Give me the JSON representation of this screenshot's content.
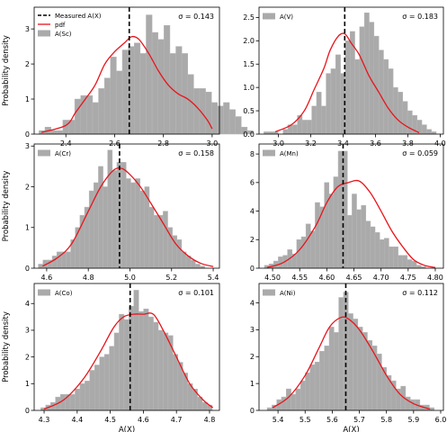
{
  "figure": {
    "ylabel": "Probability density",
    "xlabel": "A(X)",
    "legend_labels": {
      "measured": "Measured A(X)",
      "pdf": "pdf"
    },
    "colors": {
      "bar": "#aaaaaa",
      "bar_edge": "#b6b6b6",
      "pdf": "#e8141b",
      "measured": "#000000"
    }
  },
  "chart_data": [
    {
      "type": "bar",
      "title": "",
      "hist_label": "A(Sc)",
      "sigma_text": "σ = 0.143",
      "measured": 2.66,
      "bin_start": 2.29,
      "bin_width": 0.0244,
      "values": [
        0.1,
        0.2,
        0.1,
        0.1,
        0.4,
        0.4,
        1.0,
        1.1,
        1.1,
        0.9,
        1.3,
        1.6,
        2.2,
        1.8,
        2.4,
        2.5,
        2.6,
        2.3,
        3.4,
        2.9,
        2.7,
        3.1,
        2.3,
        2.5,
        2.3,
        1.7,
        1.3,
        1.3,
        1.2,
        0.9,
        0.8,
        0.9,
        0.7,
        0.5,
        0.2,
        0.1
      ],
      "pdf": [
        [
          2.3,
          0.05
        ],
        [
          2.4,
          0.25
        ],
        [
          2.44,
          0.62
        ],
        [
          2.48,
          1.0
        ],
        [
          2.52,
          1.4
        ],
        [
          2.56,
          2.0
        ],
        [
          2.6,
          2.35
        ],
        [
          2.64,
          2.6
        ],
        [
          2.67,
          2.78
        ],
        [
          2.7,
          2.7
        ],
        [
          2.74,
          2.3
        ],
        [
          2.78,
          1.8
        ],
        [
          2.82,
          1.4
        ],
        [
          2.86,
          1.15
        ],
        [
          2.9,
          1.0
        ],
        [
          2.94,
          0.75
        ],
        [
          2.98,
          0.4
        ],
        [
          3.0,
          0.15
        ]
      ],
      "xlim": [
        2.27,
        3.03
      ],
      "ylim": [
        0,
        3.62
      ],
      "xticks": [
        2.4,
        2.6,
        2.8,
        3.0
      ],
      "xtick_labels": [
        "2.4",
        "2.6",
        "2.8",
        "3.0"
      ],
      "yticks": [
        0,
        1,
        2,
        3
      ],
      "ytick_labels": [
        "0",
        "1",
        "2",
        "3"
      ],
      "legend_placement": "top-left"
    },
    {
      "type": "bar",
      "title": "",
      "hist_label": "A(V)",
      "sigma_text": "σ = 0.183",
      "measured": 3.41,
      "bin_start": 2.91,
      "bin_width": 0.0296,
      "values": [
        0.05,
        0.05,
        0.05,
        0.0,
        0.1,
        0.2,
        0.2,
        0.4,
        0.3,
        0.3,
        0.6,
        0.9,
        0.6,
        1.3,
        1.4,
        1.7,
        1.3,
        2.0,
        2.2,
        1.6,
        2.3,
        2.6,
        2.4,
        2.1,
        1.8,
        1.6,
        1.4,
        1.0,
        0.9,
        0.7,
        0.5,
        0.4,
        0.3,
        0.2,
        0.1,
        0.05
      ],
      "pdf": [
        [
          2.98,
          0.05
        ],
        [
          3.08,
          0.2
        ],
        [
          3.16,
          0.5
        ],
        [
          3.22,
          0.95
        ],
        [
          3.28,
          1.4
        ],
        [
          3.32,
          1.8
        ],
        [
          3.37,
          2.1
        ],
        [
          3.41,
          2.15
        ],
        [
          3.45,
          1.95
        ],
        [
          3.5,
          1.7
        ],
        [
          3.56,
          1.25
        ],
        [
          3.62,
          0.9
        ],
        [
          3.68,
          0.55
        ],
        [
          3.74,
          0.3
        ],
        [
          3.8,
          0.15
        ],
        [
          3.87,
          0.03
        ]
      ],
      "xlim": [
        2.88,
        4.02
      ],
      "ylim": [
        0,
        2.72
      ],
      "xticks": [
        3.0,
        3.2,
        3.4,
        3.6,
        3.8,
        4.0
      ],
      "xtick_labels": [
        "3.0",
        "3.2",
        "3.4",
        "3.6",
        "3.8",
        "4.0"
      ],
      "yticks": [
        0.0,
        0.5,
        1.0,
        1.5,
        2.0,
        2.5
      ],
      "ytick_labels": [
        "0.0",
        "0.5",
        "1.0",
        "1.5",
        "2.0",
        "2.5"
      ],
      "legend_placement": "top-left"
    },
    {
      "type": "bar",
      "title": "",
      "hist_label": "A(Cr)",
      "sigma_text": "σ = 0.158",
      "measured": 4.95,
      "bin_start": 4.56,
      "bin_width": 0.0222,
      "values": [
        0.1,
        0.2,
        0.2,
        0.3,
        0.4,
        0.4,
        0.4,
        0.7,
        1.0,
        1.3,
        1.5,
        1.9,
        2.1,
        2.5,
        2.0,
        2.9,
        2.4,
        2.6,
        2.6,
        2.2,
        2.1,
        2.2,
        1.9,
        2.0,
        1.5,
        1.3,
        1.3,
        1.4,
        1.0,
        0.8,
        0.7,
        0.4,
        0.3,
        0.2,
        0.1,
        0.05
      ],
      "pdf": [
        [
          4.58,
          0.05
        ],
        [
          4.65,
          0.25
        ],
        [
          4.72,
          0.6
        ],
        [
          4.8,
          1.4
        ],
        [
          4.86,
          2.0
        ],
        [
          4.92,
          2.4
        ],
        [
          4.96,
          2.45
        ],
        [
          5.0,
          2.3
        ],
        [
          5.05,
          2.0
        ],
        [
          5.1,
          1.6
        ],
        [
          5.16,
          1.1
        ],
        [
          5.22,
          0.6
        ],
        [
          5.28,
          0.3
        ],
        [
          5.34,
          0.12
        ],
        [
          5.4,
          0.04
        ]
      ],
      "xlim": [
        4.54,
        5.43
      ],
      "ylim": [
        0,
        3.05
      ],
      "xticks": [
        4.6,
        4.8,
        5.0,
        5.2,
        5.4
      ],
      "xtick_labels": [
        "4.6",
        "4.8",
        "5.0",
        "5.2",
        "5.4"
      ],
      "yticks": [
        0,
        1,
        2,
        3
      ],
      "ytick_labels": [
        "0",
        "1",
        "2",
        "3"
      ],
      "legend_placement": "top-left"
    },
    {
      "type": "bar",
      "title": "",
      "hist_label": "A(Mn)",
      "sigma_text": "σ = 0.059",
      "measured": 4.63,
      "bin_start": 4.485,
      "bin_width": 0.0085,
      "values": [
        0.2,
        0.3,
        0.5,
        0.8,
        0.9,
        1.3,
        1.0,
        2.0,
        2.2,
        3.1,
        2.6,
        4.6,
        4.3,
        6.0,
        5.2,
        6.4,
        8.2,
        8.2,
        3.7,
        5.2,
        4.1,
        4.4,
        3.3,
        2.9,
        2.5,
        2.0,
        2.1,
        1.5,
        1.5,
        0.9,
        0.9,
        0.6,
        0.5,
        0.2,
        0.1
      ],
      "pdf": [
        [
          4.49,
          0.05
        ],
        [
          4.52,
          0.4
        ],
        [
          4.55,
          1.3
        ],
        [
          4.58,
          3.0
        ],
        [
          4.6,
          4.6
        ],
        [
          4.62,
          5.7
        ],
        [
          4.64,
          6.0
        ],
        [
          4.66,
          6.1
        ],
        [
          4.68,
          5.3
        ],
        [
          4.7,
          4.0
        ],
        [
          4.72,
          2.6
        ],
        [
          4.74,
          1.5
        ],
        [
          4.76,
          0.6
        ],
        [
          4.78,
          0.2
        ],
        [
          4.8,
          0.05
        ]
      ],
      "xlim": [
        4.475,
        4.815
      ],
      "ylim": [
        0,
        8.7
      ],
      "xticks": [
        4.5,
        4.55,
        4.6,
        4.65,
        4.7,
        4.75,
        4.8
      ],
      "xtick_labels": [
        "4.50",
        "4.55",
        "4.60",
        "4.65",
        "4.70",
        "4.75",
        "4.80"
      ],
      "yticks": [
        0,
        2,
        4,
        6,
        8
      ],
      "ytick_labels": [
        "0",
        "2",
        "4",
        "6",
        "8"
      ],
      "legend_placement": "top-left"
    },
    {
      "type": "bar",
      "title": "",
      "hist_label": "A(Co)",
      "sigma_text": "σ = 0.101",
      "measured": 4.56,
      "bin_start": 4.29,
      "bin_width": 0.0148,
      "values": [
        0.1,
        0.2,
        0.3,
        0.5,
        0.6,
        0.6,
        0.6,
        0.8,
        1.0,
        1.1,
        1.5,
        1.7,
        2.0,
        2.1,
        2.4,
        2.9,
        3.6,
        3.4,
        3.9,
        4.5,
        3.7,
        3.8,
        3.5,
        3.3,
        3.0,
        2.9,
        2.8,
        2.1,
        1.8,
        1.4,
        1.0,
        0.8,
        0.5,
        0.3,
        0.2
      ],
      "pdf": [
        [
          4.3,
          0.05
        ],
        [
          4.36,
          0.4
        ],
        [
          4.42,
          1.2
        ],
        [
          4.47,
          2.2
        ],
        [
          4.51,
          3.1
        ],
        [
          4.54,
          3.5
        ],
        [
          4.57,
          3.6
        ],
        [
          4.6,
          3.6
        ],
        [
          4.63,
          3.6
        ],
        [
          4.66,
          3.0
        ],
        [
          4.7,
          2.0
        ],
        [
          4.74,
          1.0
        ],
        [
          4.78,
          0.4
        ],
        [
          4.81,
          0.1
        ]
      ],
      "xlim": [
        4.27,
        4.83
      ],
      "ylim": [
        0,
        4.75
      ],
      "xticks": [
        4.3,
        4.4,
        4.5,
        4.6,
        4.7,
        4.8
      ],
      "xtick_labels": [
        "4.3",
        "4.4",
        "4.5",
        "4.6",
        "4.7",
        "4.8"
      ],
      "yticks": [
        0,
        1,
        2,
        3,
        4
      ],
      "ytick_labels": [
        "0",
        "1",
        "2",
        "3",
        "4"
      ],
      "legend_placement": "top-left"
    },
    {
      "type": "bar",
      "title": "",
      "hist_label": "A(Ni)",
      "sigma_text": "σ = 0.112",
      "measured": 5.65,
      "bin_start": 5.36,
      "bin_width": 0.0176,
      "values": [
        0.1,
        0.2,
        0.4,
        0.5,
        0.8,
        0.6,
        0.8,
        1.1,
        1.4,
        1.7,
        1.8,
        2.2,
        2.4,
        3.1,
        2.9,
        4.2,
        4.4,
        3.6,
        3.4,
        3.1,
        2.9,
        2.6,
        2.4,
        2.1,
        1.6,
        1.3,
        1.1,
        0.8,
        0.9,
        0.5,
        0.4,
        0.4,
        0.2,
        0.2,
        0.1
      ],
      "pdf": [
        [
          5.38,
          0.1
        ],
        [
          5.44,
          0.5
        ],
        [
          5.5,
          1.3
        ],
        [
          5.55,
          2.3
        ],
        [
          5.59,
          3.1
        ],
        [
          5.63,
          3.45
        ],
        [
          5.66,
          3.4
        ],
        [
          5.7,
          3.0
        ],
        [
          5.75,
          2.2
        ],
        [
          5.8,
          1.3
        ],
        [
          5.85,
          0.6
        ],
        [
          5.9,
          0.25
        ],
        [
          5.96,
          0.05
        ]
      ],
      "xlim": [
        5.33,
        6.01
      ],
      "ylim": [
        0,
        4.72
      ],
      "xticks": [
        5.4,
        5.5,
        5.6,
        5.7,
        5.8,
        5.9,
        6.0
      ],
      "xtick_labels": [
        "5.4",
        "5.5",
        "5.6",
        "5.7",
        "5.8",
        "5.9",
        "6.0"
      ],
      "yticks": [
        0,
        1,
        2,
        3,
        4
      ],
      "ytick_labels": [
        "0",
        "1",
        "2",
        "3",
        "4"
      ],
      "legend_placement": "top-left"
    }
  ]
}
